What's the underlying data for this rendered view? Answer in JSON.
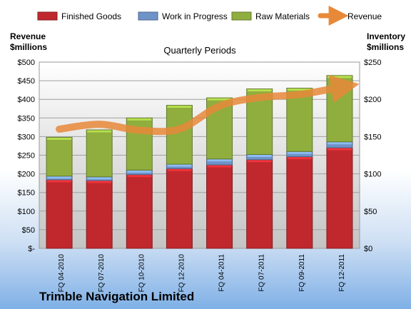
{
  "company_name": "Trimble Navigation Limited",
  "chart_data": {
    "type": "bar",
    "stacked": true,
    "subtitle": "Quarterly Periods",
    "left_axis_label": [
      "Revenue",
      "$millions"
    ],
    "right_axis_label": [
      "Inventory",
      "$millions"
    ],
    "categories": [
      "FQ 04-2010",
      "FQ 07-2010",
      "FQ 10-2010",
      "FQ 12-2010",
      "FQ 04-2011",
      "FQ 07-2011",
      "FQ 09-2011",
      "FQ 12-2011"
    ],
    "left_ticks": [
      "$-",
      "$50",
      "$100",
      "$150",
      "$200",
      "$250",
      "$300",
      "$350",
      "$400",
      "$450",
      "$500"
    ],
    "right_ticks": [
      "$0",
      "$50",
      "$100",
      "$150",
      "$200",
      "$250"
    ],
    "ylim_left": [
      0,
      500
    ],
    "ylim_right": [
      0,
      250
    ],
    "grid": true,
    "legend_position": "top",
    "series": [
      {
        "name": "Finished Goods",
        "axis": "right",
        "color": "#c0282d",
        "values": [
          92,
          91,
          99,
          107,
          112,
          119,
          123,
          135
        ]
      },
      {
        "name": "Work in Progress",
        "axis": "right",
        "color": "#6e93c8",
        "values": [
          5,
          5,
          6,
          6,
          8,
          7,
          7,
          8
        ]
      },
      {
        "name": "Raw Materials",
        "axis": "right",
        "color": "#8fae3e",
        "values": [
          52,
          63,
          70,
          79,
          82,
          88,
          85,
          89
        ]
      }
    ],
    "line_series": {
      "name": "Revenue",
      "axis": "left",
      "color": "#e8893a",
      "values": [
        320,
        333,
        317,
        320,
        382,
        405,
        413,
        432
      ]
    }
  }
}
